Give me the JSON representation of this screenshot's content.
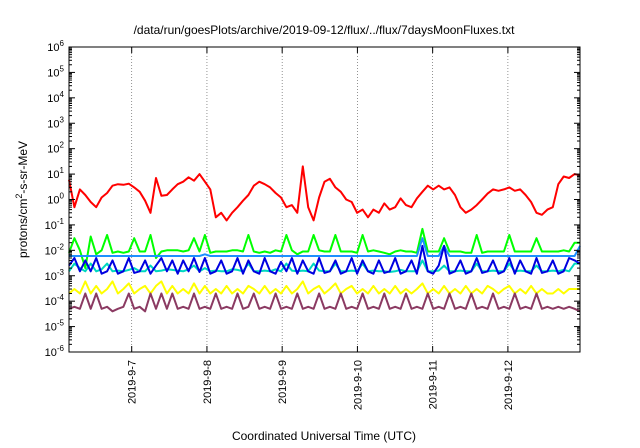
{
  "chart_data": {
    "type": "line",
    "title": "/data/run/goesPlots/archive/2019-09-12/flux/../flux/7daysMoonFluxes.txt",
    "xlabel": "Coordinated Universal Time (UTC)",
    "ylabel_parts": {
      "base": "protons/cm",
      "sup": "2",
      "rest": "-s-sr-MeV"
    },
    "yscale": "log",
    "ylim": [
      1e-06,
      1000000.0
    ],
    "y_tick_labels": [
      {
        "base": "10",
        "exp": "-6"
      },
      {
        "base": "10",
        "exp": "-5"
      },
      {
        "base": "10",
        "exp": "-4"
      },
      {
        "base": "10",
        "exp": "-3"
      },
      {
        "base": "10",
        "exp": "-2"
      },
      {
        "base": "10",
        "exp": "-1"
      },
      {
        "base": "10",
        "exp": "0"
      },
      {
        "base": "10",
        "exp": "1"
      },
      {
        "base": "10",
        "exp": "2"
      },
      {
        "base": "10",
        "exp": "3"
      },
      {
        "base": "10",
        "exp": "4"
      },
      {
        "base": "10",
        "exp": "5"
      },
      {
        "base": "10",
        "exp": "6"
      }
    ],
    "x_start": "2019-09-06T04:00",
    "x_end": "2019-09-12T23:00",
    "x_ticks": [
      "2019-9-7",
      "2019-9-8",
      "2019-9-9",
      "2019-9-10",
      "2019-9-11",
      "2019-9-12"
    ],
    "grid": true,
    "series": [
      {
        "color": "#ff0000",
        "values": [
          6,
          0.5,
          2.5,
          1.5,
          0.8,
          0.5,
          1.2,
          1.8,
          3.5,
          4,
          3.8,
          4.2,
          3,
          2,
          0.9,
          0.3,
          7,
          1.4,
          1.5,
          2.5,
          4,
          5,
          7.5,
          5.5,
          10,
          5,
          2.5,
          0.2,
          0.3,
          0.15,
          0.3,
          0.5,
          0.9,
          1.5,
          3.5,
          5,
          4,
          3,
          1.8,
          1.2,
          0.5,
          0.6,
          0.3,
          20,
          0.5,
          0.15,
          1.2,
          5,
          6.5,
          3,
          2,
          1,
          0.8,
          0.3,
          0.4,
          0.2,
          0.4,
          0.3,
          0.7,
          0.4,
          0.5,
          1.1,
          0.6,
          0.5,
          1.1,
          2,
          3.5,
          2.5,
          3.5,
          2.5,
          3,
          1.5,
          0.5,
          0.3,
          0.4,
          0.6,
          1,
          1.7,
          2.5,
          2.2,
          2.5,
          3,
          2.2,
          2.5,
          1.5,
          0.8,
          0.3,
          0.25,
          0.4,
          0.5,
          4,
          8,
          7,
          10,
          9
        ]
      },
      {
        "color": "#00ff00",
        "values": [
          0.008,
          0.03,
          0.01,
          0.002,
          0.035,
          0.007,
          0.01,
          0.04,
          0.008,
          0.009,
          0.008,
          0.009,
          0.03,
          0.009,
          0.009,
          0.04,
          0.005,
          0.009,
          0.01,
          0.01,
          0.01,
          0.009,
          0.01,
          0.03,
          0.009,
          0.04,
          0.008,
          0.009,
          0.009,
          0.009,
          0.01,
          0.01,
          0.009,
          0.04,
          0.009,
          0.008,
          0.009,
          0.008,
          0.01,
          0.009,
          0.04,
          0.01,
          0.007,
          0.009,
          0.009,
          0.04,
          0.01,
          0.009,
          0.009,
          0.04,
          0.009,
          0.009,
          0.009,
          0.008,
          0.04,
          0.009,
          0.01,
          0.009,
          0.008,
          0.007,
          0.009,
          0.01,
          0.009,
          0.009,
          0.008,
          0.07,
          0.009,
          0.009,
          0.009,
          0.03,
          0.009,
          0.009,
          0.009,
          0.008,
          0.008,
          0.04,
          0.008,
          0.009,
          0.009,
          0.009,
          0.009,
          0.04,
          0.009,
          0.009,
          0.009,
          0.009,
          0.03,
          0.009,
          0.009,
          0.009,
          0.009,
          0.01,
          0.009,
          0.02,
          0.02
        ]
      },
      {
        "color": "#00d8c0",
        "values": [
          0.0015,
          0.003,
          0.002,
          0.0015,
          0.003,
          0.0015,
          0.0018,
          0.003,
          0.0015,
          0.0016,
          0.0015,
          0.0017,
          0.002,
          0.0015,
          0.0015,
          0.0025,
          0.0015,
          0.0016,
          0.0018,
          0.0017,
          0.0016,
          0.0015,
          0.0018,
          0.0025,
          0.0015,
          0.002,
          0.0015,
          0.0016,
          0.0015,
          0.0015,
          0.0018,
          0.0017,
          0.0015,
          0.003,
          0.0015,
          0.0015,
          0.0016,
          0.0015,
          0.0018,
          0.0015,
          0.003,
          0.0016,
          0.0015,
          0.0016,
          0.0015,
          0.003,
          0.0016,
          0.0015,
          0.0015,
          0.003,
          0.0015,
          0.0015,
          0.0016,
          0.0015,
          0.003,
          0.0015,
          0.0016,
          0.0015,
          0.0015,
          0.0014,
          0.0015,
          0.0017,
          0.0015,
          0.0015,
          0.0015,
          0.004,
          0.0015,
          0.0015,
          0.0016,
          0.0025,
          0.0015,
          0.0015,
          0.0016,
          0.0015,
          0.0015,
          0.003,
          0.0015,
          0.0015,
          0.0016,
          0.0015,
          0.0015,
          0.003,
          0.0015,
          0.0016,
          0.0015,
          0.0015,
          0.0025,
          0.0015,
          0.0015,
          0.0016,
          0.0015,
          0.0017,
          0.0015,
          0.003,
          0.003
        ]
      },
      {
        "color": "#1e90ff",
        "values": [
          0.006,
          0.006,
          0.006,
          0.006,
          0.006,
          0.006,
          0.006,
          0.006,
          0.006,
          0.006,
          0.006,
          0.006,
          0.006,
          0.006,
          0.006,
          0.006,
          0.006,
          0.006,
          0.006,
          0.006,
          0.006,
          0.006,
          0.006,
          0.006,
          0.006,
          0.007,
          0.006,
          0.006,
          0.006,
          0.006,
          0.006,
          0.006,
          0.006,
          0.006,
          0.006,
          0.006,
          0.006,
          0.006,
          0.006,
          0.006,
          0.006,
          0.006,
          0.006,
          0.006,
          0.006,
          0.006,
          0.006,
          0.006,
          0.006,
          0.006,
          0.006,
          0.006,
          0.006,
          0.006,
          0.006,
          0.006,
          0.006,
          0.006,
          0.006,
          0.006,
          0.006,
          0.006,
          0.006,
          0.006,
          0.006,
          0.03,
          0.006,
          0.006,
          0.006,
          0.015,
          0.006,
          0.006,
          0.006,
          0.006,
          0.006,
          0.006,
          0.006,
          0.006,
          0.006,
          0.006,
          0.006,
          0.006,
          0.006,
          0.006,
          0.006,
          0.006,
          0.006,
          0.006,
          0.006,
          0.006,
          0.006,
          0.006,
          0.006,
          0.006,
          0.015
        ]
      },
      {
        "color": "#0000e0",
        "values": [
          0.0025,
          0.005,
          0.0015,
          0.004,
          0.0015,
          0.005,
          0.0012,
          0.0015,
          0.004,
          0.0012,
          0.0015,
          0.005,
          0.0013,
          0.0015,
          0.004,
          0.0012,
          0.0025,
          0.005,
          0.0015,
          0.004,
          0.0012,
          0.004,
          0.0015,
          0.005,
          0.0014,
          0.005,
          0.0012,
          0.0015,
          0.004,
          0.0012,
          0.0015,
          0.005,
          0.0012,
          0.004,
          0.0015,
          0.0012,
          0.005,
          0.0015,
          0.0012,
          0.0035,
          0.0015,
          0.005,
          0.0012,
          0.004,
          0.0015,
          0.0012,
          0.005,
          0.0013,
          0.0015,
          0.004,
          0.0012,
          0.0015,
          0.005,
          0.0012,
          0.004,
          0.0015,
          0.0012,
          0.004,
          0.0013,
          0.0015,
          0.005,
          0.0012,
          0.0015,
          0.004,
          0.0012,
          0.015,
          0.0015,
          0.0012,
          0.0025,
          0.015,
          0.0012,
          0.0015,
          0.004,
          0.0012,
          0.0015,
          0.005,
          0.0013,
          0.0015,
          0.004,
          0.0012,
          0.0015,
          0.005,
          0.0012,
          0.004,
          0.0015,
          0.0012,
          0.005,
          0.0013,
          0.0015,
          0.004,
          0.0012,
          0.0015,
          0.005,
          0.004,
          0.003
        ]
      },
      {
        "color": "#ffff00",
        "values": [
          0.0002,
          0.0003,
          0.0002,
          0.0006,
          0.0002,
          0.0004,
          0.0002,
          0.0003,
          0.0006,
          0.0002,
          0.0003,
          0.0005,
          0.0002,
          0.0003,
          0.0004,
          0.0002,
          0.0004,
          0.0006,
          0.0002,
          0.0004,
          0.0002,
          0.0003,
          0.0002,
          0.0005,
          0.0002,
          0.0004,
          0.0002,
          0.0003,
          0.0002,
          0.0004,
          0.0002,
          0.0003,
          0.0002,
          0.0004,
          0.0003,
          0.0002,
          0.0004,
          0.0002,
          0.0003,
          0.0002,
          0.0004,
          0.0002,
          0.0003,
          0.0006,
          0.0002,
          0.0003,
          0.0004,
          0.0002,
          0.0003,
          0.0005,
          0.0002,
          0.0003,
          0.0004,
          0.0002,
          0.0003,
          0.0002,
          0.0004,
          0.0002,
          0.0003,
          0.0002,
          0.0004,
          0.0002,
          0.0003,
          0.0002,
          0.0003,
          0.0005,
          0.0002,
          0.0003,
          0.0002,
          0.0004,
          0.0002,
          0.0003,
          0.0002,
          0.0004,
          0.0002,
          0.0003,
          0.0002,
          0.0004,
          0.0003,
          0.0002,
          0.0003,
          0.0004,
          0.0002,
          0.0003,
          0.0002,
          0.0004,
          0.0002,
          0.0003,
          0.0002,
          0.0002,
          0.0003,
          0.0002,
          0.0003,
          0.0003,
          0.0003
        ]
      },
      {
        "color": "#8b3a62",
        "values": [
          5e-05,
          6e-05,
          5e-05,
          0.0002,
          5e-05,
          0.0002,
          5e-05,
          6e-05,
          4e-05,
          5e-05,
          6e-05,
          0.0002,
          5e-05,
          6e-05,
          4e-05,
          0.0002,
          5e-05,
          0.0002,
          5e-05,
          0.0002,
          5e-05,
          6e-05,
          5e-05,
          0.0002,
          5e-05,
          6e-05,
          5e-05,
          0.0002,
          5e-05,
          6e-05,
          5e-05,
          0.0002,
          5e-05,
          6e-05,
          0.0002,
          5e-05,
          6e-05,
          5e-05,
          0.0002,
          5e-05,
          6e-05,
          5e-05,
          0.0002,
          5e-05,
          6e-05,
          5e-05,
          0.0002,
          5e-05,
          6e-05,
          5e-05,
          0.0002,
          5e-05,
          6e-05,
          5e-05,
          0.0002,
          5e-05,
          6e-05,
          5e-05,
          0.0002,
          5e-05,
          6e-05,
          5e-05,
          0.0002,
          5e-05,
          6e-05,
          5e-05,
          0.0002,
          5e-05,
          6e-05,
          5e-05,
          0.0002,
          5e-05,
          6e-05,
          5e-05,
          0.0002,
          5e-05,
          6e-05,
          5e-05,
          0.0002,
          5e-05,
          6e-05,
          5e-05,
          0.0002,
          5e-05,
          6e-05,
          5e-05,
          0.0002,
          5e-05,
          6e-05,
          5e-05,
          6e-05,
          5e-05,
          6e-05,
          5e-05,
          4e-05
        ]
      }
    ]
  }
}
